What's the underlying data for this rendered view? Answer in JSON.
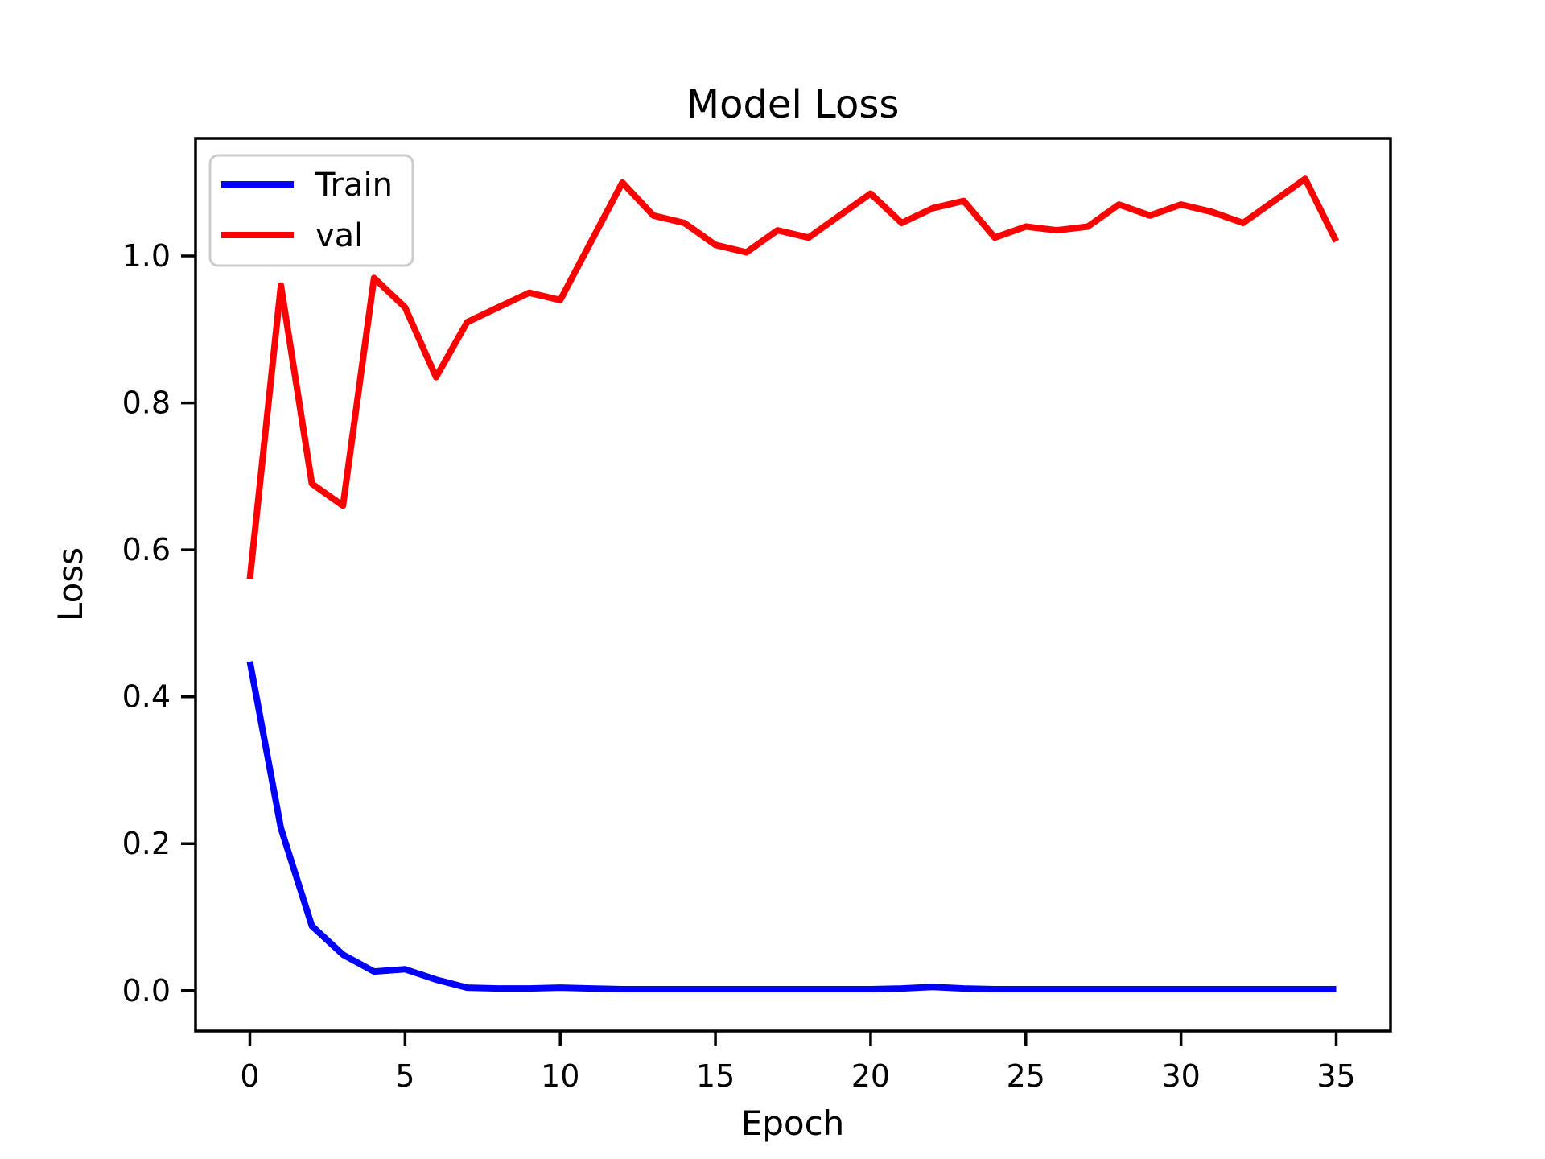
{
  "figure": {
    "background": "#ffffff",
    "axis_color": "#000000"
  },
  "chart_data": {
    "type": "line",
    "title": "Model Loss",
    "xlabel": "Epoch",
    "ylabel": "Loss",
    "grid": false,
    "xlim": [
      -1.75,
      36.75
    ],
    "ylim": [
      -0.055,
      1.16
    ],
    "x": [
      0,
      1,
      2,
      3,
      4,
      5,
      6,
      7,
      8,
      9,
      10,
      11,
      12,
      13,
      14,
      15,
      16,
      17,
      18,
      19,
      20,
      21,
      22,
      23,
      24,
      25,
      26,
      27,
      28,
      29,
      30,
      31,
      32,
      33,
      34,
      35
    ],
    "series": [
      {
        "name": "Train",
        "color": "#0000ff",
        "values": [
          0.448,
          0.221,
          0.088,
          0.049,
          0.026,
          0.029,
          0.015,
          0.004,
          0.003,
          0.003,
          0.004,
          0.003,
          0.002,
          0.002,
          0.002,
          0.002,
          0.002,
          0.002,
          0.002,
          0.002,
          0.002,
          0.003,
          0.005,
          0.003,
          0.002,
          0.002,
          0.002,
          0.002,
          0.002,
          0.002,
          0.002,
          0.002,
          0.002,
          0.002,
          0.002,
          0.002
        ]
      },
      {
        "name": "val",
        "color": "#ff0000",
        "values": [
          0.56,
          0.96,
          0.69,
          0.66,
          0.97,
          0.93,
          0.835,
          0.91,
          0.93,
          0.95,
          0.94,
          1.02,
          1.1,
          1.055,
          1.045,
          1.015,
          1.005,
          1.035,
          1.025,
          1.055,
          1.085,
          1.045,
          1.065,
          1.075,
          1.025,
          1.04,
          1.035,
          1.04,
          1.07,
          1.055,
          1.07,
          1.06,
          1.045,
          1.075,
          1.105,
          1.02
        ]
      }
    ],
    "xticks": {
      "values": [
        0,
        5,
        10,
        15,
        20,
        25,
        30,
        35
      ],
      "labels": [
        "0",
        "5",
        "10",
        "15",
        "20",
        "25",
        "30",
        "35"
      ]
    },
    "yticks": {
      "values": [
        0.0,
        0.2,
        0.4,
        0.6,
        0.8,
        1.0
      ],
      "labels": [
        "0.0",
        "0.2",
        "0.4",
        "0.6",
        "0.8",
        "1.0"
      ]
    },
    "legend": {
      "position": "upper left",
      "border_color": "#cccccc",
      "background": "#ffffff",
      "entries": [
        "Train",
        "val"
      ]
    }
  }
}
